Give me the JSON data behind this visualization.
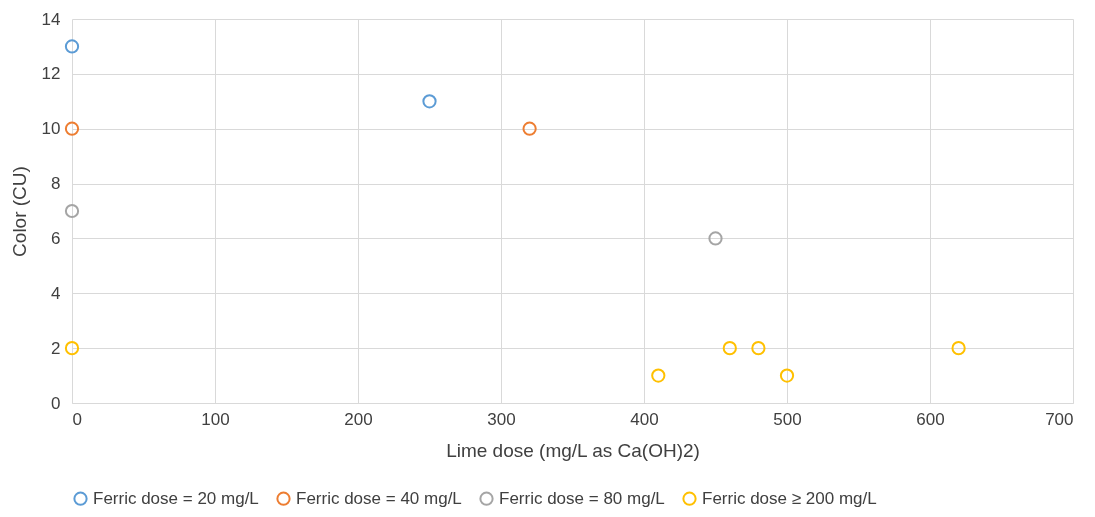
{
  "chart_data": {
    "type": "scatter",
    "xlabel": "Lime dose (mg/L as Ca(OH)2)",
    "ylabel": "Color (CU)",
    "xlim": [
      0,
      700
    ],
    "xticks": [
      0,
      100,
      200,
      300,
      400,
      500,
      600,
      700
    ],
    "ylim": [
      0,
      14
    ],
    "yticks": [
      0,
      2,
      4,
      6,
      8,
      10,
      12,
      14
    ],
    "grid": true,
    "legend": "bottom",
    "marker": "circle",
    "series": [
      {
        "name": "Ferric dose = 20 mg/L",
        "color": "#5b9bd5",
        "x": [
          0,
          250
        ],
        "values": [
          13,
          11
        ]
      },
      {
        "name": "Ferric dose = 40 mg/L",
        "color": "#ed7d31",
        "x": [
          0,
          320
        ],
        "values": [
          10,
          10
        ]
      },
      {
        "name": "Ferric dose = 80 mg/L",
        "color": "#a5a5a5",
        "x": [
          0,
          450
        ],
        "values": [
          7,
          6
        ]
      },
      {
        "name": "Ferric dose ≥ 200 mg/L",
        "color": "#ffc000",
        "x": [
          0,
          410,
          460,
          480,
          500,
          620
        ],
        "values": [
          2,
          1,
          2,
          2,
          1,
          2
        ]
      }
    ]
  }
}
